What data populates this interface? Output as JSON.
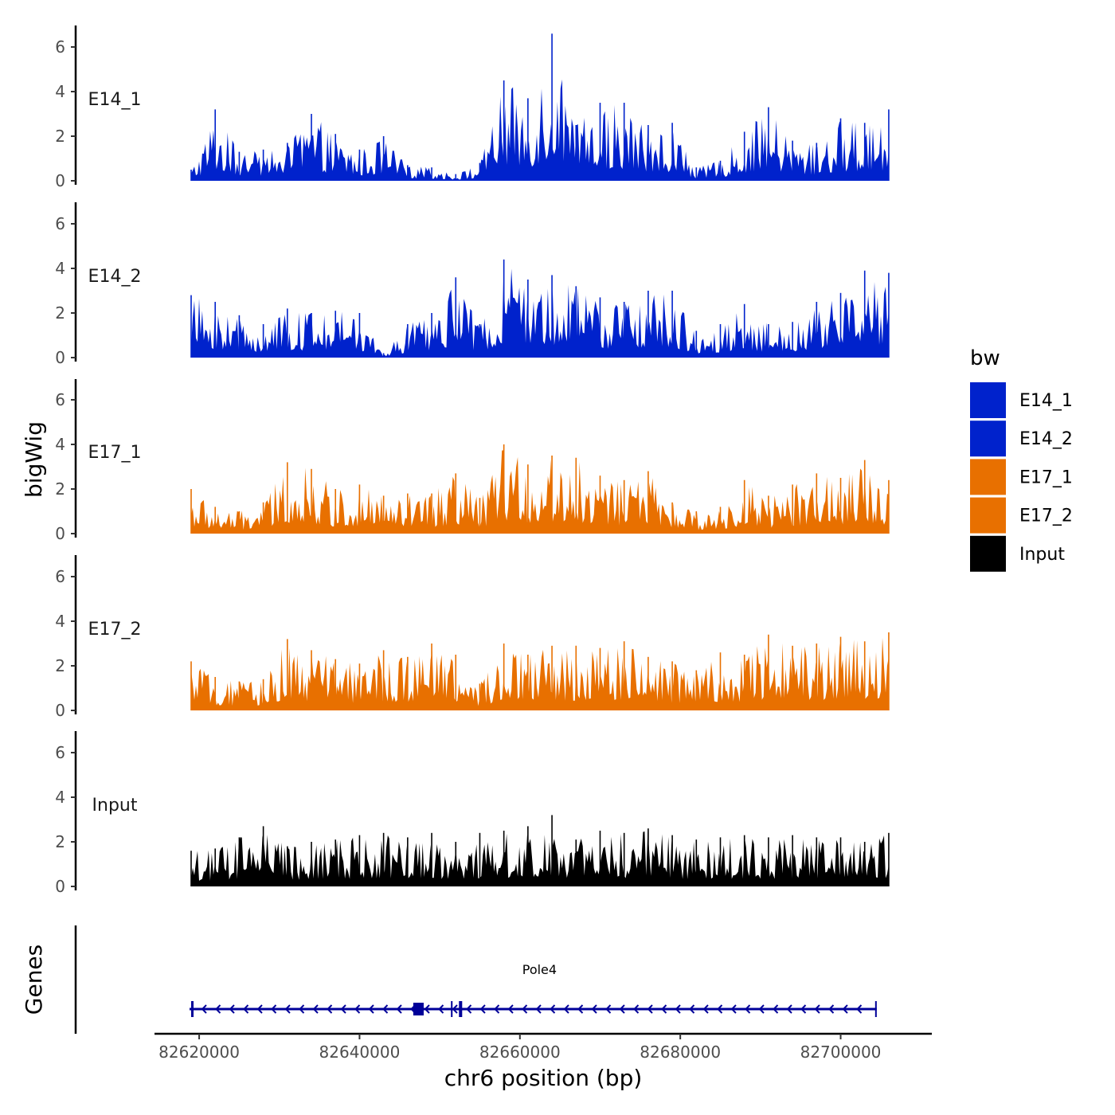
{
  "chart_data": {
    "type": "area",
    "title": "",
    "xlabel": "chr6 position (bp)",
    "ylabel": "bigWig",
    "genes_axis_label": "Genes",
    "x_range": [
      82619000,
      82707000
    ],
    "x_ticks": [
      82620000,
      82640000,
      82660000,
      82680000,
      82700000
    ],
    "x_tick_labels": [
      "82620000",
      "82640000",
      "82660000",
      "82680000",
      "82700000"
    ],
    "ylim": [
      0,
      7
    ],
    "y_ticks": [
      0,
      2,
      4,
      6
    ],
    "y_tick_labels": [
      "0",
      "2",
      "4",
      "6"
    ],
    "legend": {
      "title": "bw",
      "position": "right",
      "entries": [
        {
          "name": "E14_1",
          "color": "#0022cc"
        },
        {
          "name": "E14_2",
          "color": "#0022cc"
        },
        {
          "name": "E17_1",
          "color": "#e87000"
        },
        {
          "name": "E17_2",
          "color": "#e87000"
        },
        {
          "name": "Input",
          "color": "#000000"
        }
      ]
    },
    "series": [
      {
        "name": "E14_1",
        "color": "#0022cc",
        "x": [
          82619000,
          82622000,
          82625000,
          82628000,
          82631000,
          82634000,
          82637000,
          82640000,
          82643000,
          82646000,
          82649000,
          82652000,
          82655000,
          82658000,
          82661000,
          82664000,
          82667000,
          82670000,
          82673000,
          82676000,
          82679000,
          82682000,
          82685000,
          82688000,
          82691000,
          82694000,
          82697000,
          82700000,
          82703000,
          82706000
        ],
        "values": [
          0.5,
          3.2,
          1.3,
          1.4,
          1.7,
          3.0,
          2.1,
          1.4,
          2.0,
          0.7,
          0.6,
          0.3,
          0.8,
          4.5,
          3.7,
          6.6,
          2.5,
          3.5,
          3.5,
          2.5,
          2.6,
          0.6,
          0.9,
          2.2,
          3.3,
          1.8,
          1.7,
          2.8,
          2.6,
          3.2
        ]
      },
      {
        "name": "E14_2",
        "color": "#0022cc",
        "x": [
          82619000,
          82622000,
          82625000,
          82628000,
          82631000,
          82634000,
          82637000,
          82640000,
          82643000,
          82646000,
          82649000,
          82652000,
          82655000,
          82658000,
          82661000,
          82664000,
          82667000,
          82670000,
          82673000,
          82676000,
          82679000,
          82682000,
          82685000,
          82688000,
          82691000,
          82694000,
          82697000,
          82700000,
          82703000,
          82706000
        ],
        "values": [
          2.8,
          2.5,
          1.9,
          1.5,
          2.2,
          2.0,
          2.1,
          2.0,
          0.2,
          1.5,
          2.0,
          3.6,
          1.5,
          4.4,
          3.5,
          3.7,
          3.2,
          2.7,
          2.5,
          3.0,
          3.0,
          1.2,
          1.5,
          2.4,
          1.5,
          1.6,
          2.5,
          2.9,
          3.9,
          3.8
        ]
      },
      {
        "name": "E17_1",
        "color": "#e87000",
        "x": [
          82619000,
          82622000,
          82625000,
          82628000,
          82631000,
          82634000,
          82637000,
          82640000,
          82643000,
          82646000,
          82649000,
          82652000,
          82655000,
          82658000,
          82661000,
          82664000,
          82667000,
          82670000,
          82673000,
          82676000,
          82679000,
          82682000,
          82685000,
          82688000,
          82691000,
          82694000,
          82697000,
          82700000,
          82703000,
          82706000
        ],
        "values": [
          2.0,
          1.2,
          1.0,
          1.4,
          3.2,
          2.9,
          2.0,
          2.2,
          1.7,
          1.8,
          1.8,
          2.7,
          1.6,
          4.0,
          3.1,
          3.5,
          3.4,
          2.6,
          2.4,
          2.8,
          1.4,
          1.0,
          1.2,
          2.4,
          1.7,
          2.2,
          2.7,
          2.5,
          3.3,
          2.4
        ]
      },
      {
        "name": "E17_2",
        "color": "#e87000",
        "x": [
          82619000,
          82622000,
          82625000,
          82628000,
          82631000,
          82634000,
          82637000,
          82640000,
          82643000,
          82646000,
          82649000,
          82652000,
          82655000,
          82658000,
          82661000,
          82664000,
          82667000,
          82670000,
          82673000,
          82676000,
          82679000,
          82682000,
          82685000,
          82688000,
          82691000,
          82694000,
          82697000,
          82700000,
          82703000,
          82706000
        ],
        "values": [
          2.2,
          1.5,
          1.3,
          1.4,
          3.2,
          2.7,
          2.3,
          2.1,
          2.7,
          2.4,
          3.0,
          2.5,
          1.2,
          3.0,
          2.5,
          2.9,
          2.9,
          2.8,
          3.1,
          2.4,
          2.2,
          1.8,
          2.6,
          2.5,
          3.4,
          2.9,
          3.0,
          3.3,
          3.1,
          3.5
        ]
      },
      {
        "name": "Input",
        "color": "#000000",
        "x": [
          82619000,
          82622000,
          82625000,
          82628000,
          82631000,
          82634000,
          82637000,
          82640000,
          82643000,
          82646000,
          82649000,
          82652000,
          82655000,
          82658000,
          82661000,
          82664000,
          82667000,
          82670000,
          82673000,
          82676000,
          82679000,
          82682000,
          82685000,
          82688000,
          82691000,
          82694000,
          82697000,
          82700000,
          82703000,
          82706000
        ],
        "values": [
          1.6,
          1.7,
          2.2,
          2.7,
          1.8,
          2.0,
          2.1,
          2.3,
          2.4,
          2.2,
          2.4,
          2.0,
          2.4,
          2.5,
          2.7,
          3.2,
          2.1,
          2.5,
          2.4,
          2.6,
          2.3,
          2.1,
          2.2,
          2.3,
          2.2,
          2.3,
          2.2,
          2.2,
          2.0,
          2.4
        ]
      }
    ],
    "genes": [
      {
        "name": "Pole4",
        "strand": "-",
        "start": 82619000,
        "end": 82704500,
        "exons": [
          [
            82619000,
            82619300
          ],
          [
            82646700,
            82648000
          ],
          [
            82651400,
            82651600
          ],
          [
            82652400,
            82652800
          ],
          [
            82704300,
            82704500
          ]
        ]
      }
    ]
  }
}
